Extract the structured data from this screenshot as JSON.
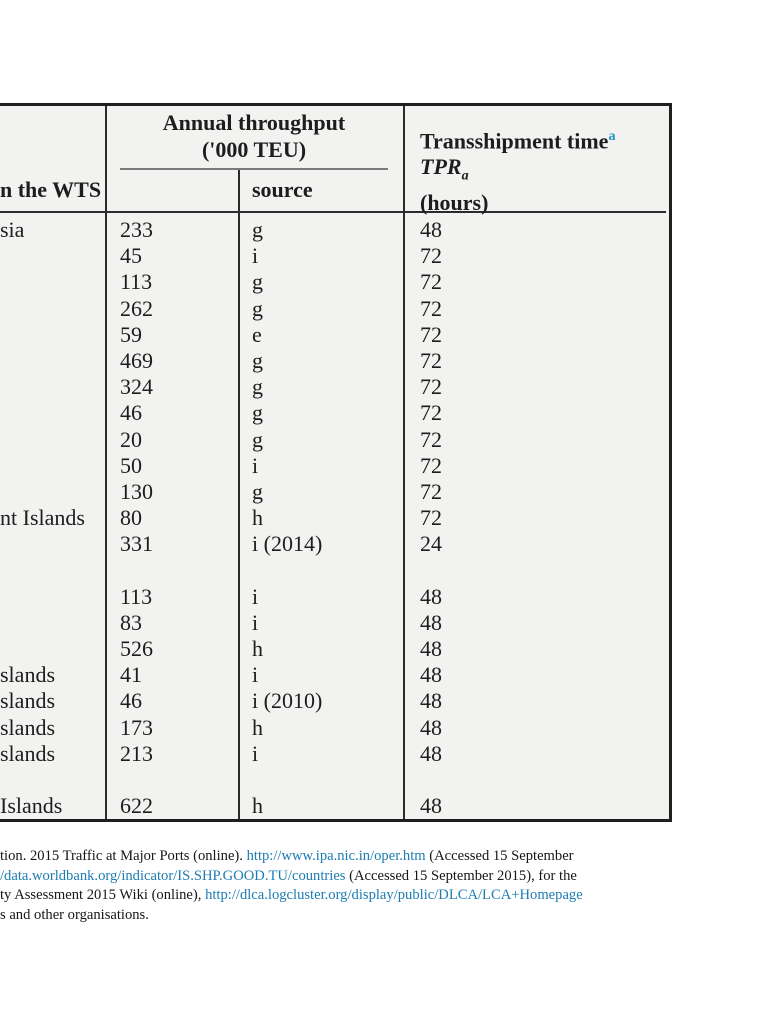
{
  "table": {
    "header": {
      "left_col_partial": "n the WTS",
      "throughput_line1": "Annual throughput",
      "throughput_line2": "('000 TEU)",
      "source_label": "source",
      "transshipment_title": "Transshipment time",
      "transshipment_sup": "a",
      "tpr_symbol": "TPR",
      "tpr_sub": "a",
      "unit": "(hours)"
    },
    "rows": [
      {
        "port": "sia",
        "throughput": "233",
        "source": "g",
        "tpr": "48"
      },
      {
        "port": "",
        "throughput": "45",
        "source": "i",
        "tpr": "72"
      },
      {
        "port": "",
        "throughput": "113",
        "source": "g",
        "tpr": "72"
      },
      {
        "port": "",
        "throughput": "262",
        "source": "g",
        "tpr": "72"
      },
      {
        "port": "",
        "throughput": "59",
        "source": "e",
        "tpr": "72"
      },
      {
        "port": "",
        "throughput": "469",
        "source": "g",
        "tpr": "72"
      },
      {
        "port": "",
        "throughput": "324",
        "source": "g",
        "tpr": "72"
      },
      {
        "port": "",
        "throughput": "46",
        "source": "g",
        "tpr": "72"
      },
      {
        "port": "",
        "throughput": "20",
        "source": "g",
        "tpr": "72"
      },
      {
        "port": "",
        "throughput": "50",
        "source": "i",
        "tpr": "72"
      },
      {
        "port": "",
        "throughput": "130",
        "source": "g",
        "tpr": "72"
      },
      {
        "port": "nt Islands",
        "throughput": "80",
        "source": "h",
        "tpr": "72"
      },
      {
        "port": "",
        "throughput": "331",
        "source": "i (2014)",
        "tpr": "24"
      },
      {
        "port": "",
        "throughput": "",
        "source": "",
        "tpr": ""
      },
      {
        "port": "",
        "throughput": "113",
        "source": "i",
        "tpr": "48"
      },
      {
        "port": "",
        "throughput": "83",
        "source": "i",
        "tpr": "48"
      },
      {
        "port": "",
        "throughput": "526",
        "source": "h",
        "tpr": "48"
      },
      {
        "port": "slands",
        "throughput": "41",
        "source": "i",
        "tpr": "48"
      },
      {
        "port": "slands",
        "throughput": "46",
        "source": "i (2010)",
        "tpr": "48"
      },
      {
        "port": "slands",
        "throughput": "173",
        "source": "h",
        "tpr": "48"
      },
      {
        "port": "slands",
        "throughput": "213",
        "source": "i",
        "tpr": "48"
      },
      {
        "port": "",
        "throughput": "",
        "source": "",
        "tpr": ""
      },
      {
        "port": "Islands",
        "throughput": "622",
        "source": "h",
        "tpr": "48"
      }
    ]
  },
  "footnote": {
    "lines": [
      [
        {
          "text": "tion. 2015 Traffic at Major Ports (online). ",
          "link": false
        },
        {
          "text": "http://www.ipa.nic.in/oper.htm",
          "link": true
        },
        {
          "text": " (Accessed 15 September",
          "link": false
        }
      ],
      [
        {
          "text": "/data.worldbank.org/indicator/IS.SHP.GOOD.TU/countries",
          "link": true
        },
        {
          "text": " (Accessed 15 September 2015), for the",
          "link": false
        }
      ],
      [
        {
          "text": "ty Assessment 2015 Wiki (online), ",
          "link": false
        },
        {
          "text": "http://dlca.logcluster.org/display/public/DLCA/LCA+Homepage",
          "link": true
        }
      ],
      [
        {
          "text": "s and other organisations.",
          "link": false
        }
      ]
    ]
  },
  "colors": {
    "table_background": "#f2f2f1",
    "border": "#1f1f1f",
    "link": "#1d7cb1",
    "superscript": "#2395c1",
    "text": "#1e1c1d"
  }
}
